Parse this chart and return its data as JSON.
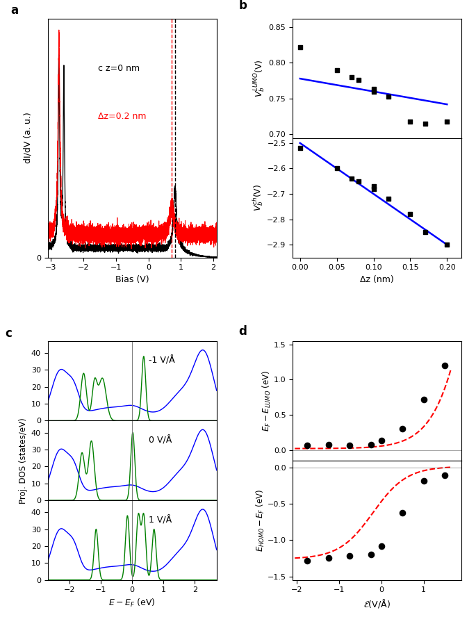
{
  "panel_a": {
    "black_vline": 0.82,
    "red_vline": 0.72,
    "label_black": "c z=0 nm",
    "label_red": "Δz=0.2 nm",
    "xlabel": "Bias (V)",
    "ylabel": "dI/dV (a. u.)",
    "xlim": [
      -3.1,
      2.1
    ]
  },
  "panel_b_top": {
    "x_data": [
      0.0,
      0.05,
      0.07,
      0.08,
      0.1,
      0.1,
      0.12,
      0.15,
      0.17,
      0.2
    ],
    "y_data": [
      0.822,
      0.79,
      0.78,
      0.776,
      0.764,
      0.76,
      0.753,
      0.718,
      0.715,
      0.718
    ],
    "fit_x": [
      0.0,
      0.2
    ],
    "fit_y": [
      0.778,
      0.742
    ],
    "ylabel": "$V_b^{LUMO}$(V)",
    "ylim": [
      0.695,
      0.862
    ],
    "yticks": [
      0.7,
      0.75,
      0.8,
      0.85
    ]
  },
  "panel_b_bottom": {
    "x_data": [
      0.0,
      0.05,
      0.07,
      0.08,
      0.1,
      0.1,
      0.12,
      0.15,
      0.17,
      0.2
    ],
    "y_data": [
      -2.52,
      -2.6,
      -2.64,
      -2.65,
      -2.68,
      -2.67,
      -2.72,
      -2.78,
      -2.85,
      -2.9
    ],
    "fit_x": [
      0.0,
      0.2
    ],
    "fit_y": [
      -2.5,
      -2.9
    ],
    "ylabel": "$V_b^{ch}$(V)",
    "xlabel": "Δz (nm)",
    "ylim": [
      -2.95,
      -2.48
    ],
    "yticks": [
      -2.9,
      -2.8,
      -2.7,
      -2.6,
      -2.5
    ]
  },
  "panel_c": {
    "xlim": [
      -2.7,
      2.7
    ],
    "ylim": [
      0,
      47
    ],
    "yticks": [
      0,
      10,
      20,
      30,
      40
    ],
    "xlabel": "$E - E_F$ (eV)",
    "ylabel": "Proj. DOS (states/eV)",
    "labels": [
      "-1 V/Å",
      "0 V/Å",
      "1 V/Å"
    ]
  },
  "panel_d": {
    "top": {
      "x_data": [
        -1.75,
        -1.25,
        -0.75,
        -0.25,
        0.0,
        0.5,
        1.0,
        1.5
      ],
      "y_data": [
        0.07,
        0.08,
        0.07,
        0.08,
        0.13,
        0.3,
        0.72,
        1.2
      ],
      "ylabel": "$E_F - E_{LUMO}$ (eV)",
      "ylim": [
        -0.15,
        1.55
      ],
      "yticks": [
        0.0,
        0.5,
        1.0,
        1.5
      ],
      "xlim": [
        -2.1,
        1.9
      ]
    },
    "bottom": {
      "x_data": [
        -1.75,
        -1.25,
        -0.75,
        -0.25,
        0.0,
        0.5,
        1.0,
        1.5
      ],
      "y_data": [
        -1.28,
        -1.25,
        -1.22,
        -1.2,
        -1.08,
        -0.62,
        -0.18,
        -0.1
      ],
      "ylabel": "$E_{HOMO} - E_F$ (eV)",
      "xlabel": "$\\mathcal{E}$(V/Å)",
      "ylim": [
        -1.55,
        0.1
      ],
      "yticks": [
        -1.5,
        -1.0,
        -0.5,
        0.0
      ],
      "xlim": [
        -2.1,
        1.9
      ]
    }
  }
}
